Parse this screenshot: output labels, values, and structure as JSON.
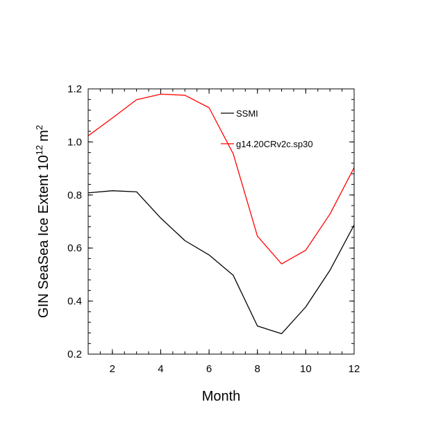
{
  "chart_data": {
    "type": "line",
    "xlabel": "Month",
    "ylabel": "GIN SeaSea Ice Extent 10",
    "ylabel_sup": "12",
    "ylabel_unit": "m",
    "ylabel_unit_sup": "2",
    "xlim": [
      1,
      12
    ],
    "ylim": [
      0.2,
      1.2
    ],
    "xticks": [
      2,
      4,
      6,
      8,
      10,
      12
    ],
    "xtick_labels": [
      "2",
      "4",
      "6",
      "8",
      "10",
      "12"
    ],
    "yticks": [
      0.2,
      0.4,
      0.6,
      0.8,
      1.0,
      1.2
    ],
    "ytick_labels": [
      "0.2",
      "0.4",
      "0.6",
      "0.8",
      "1.0",
      "1.2"
    ],
    "grid": false,
    "legend_position": "top-right inside",
    "x": [
      1,
      2,
      3,
      4,
      5,
      6,
      7,
      8,
      9,
      10,
      11,
      12
    ],
    "series": [
      {
        "name": "SSMI",
        "color": "#000000",
        "values": [
          0.808,
          0.816,
          0.812,
          0.713,
          0.628,
          0.574,
          0.497,
          0.306,
          0.277,
          0.378,
          0.516,
          0.687
        ]
      },
      {
        "name": "g14.20CRv2c.sp30",
        "color": "#ff0000",
        "values": [
          1.023,
          1.09,
          1.159,
          1.18,
          1.176,
          1.129,
          0.955,
          0.645,
          0.54,
          0.592,
          0.728,
          0.903
        ]
      }
    ]
  }
}
